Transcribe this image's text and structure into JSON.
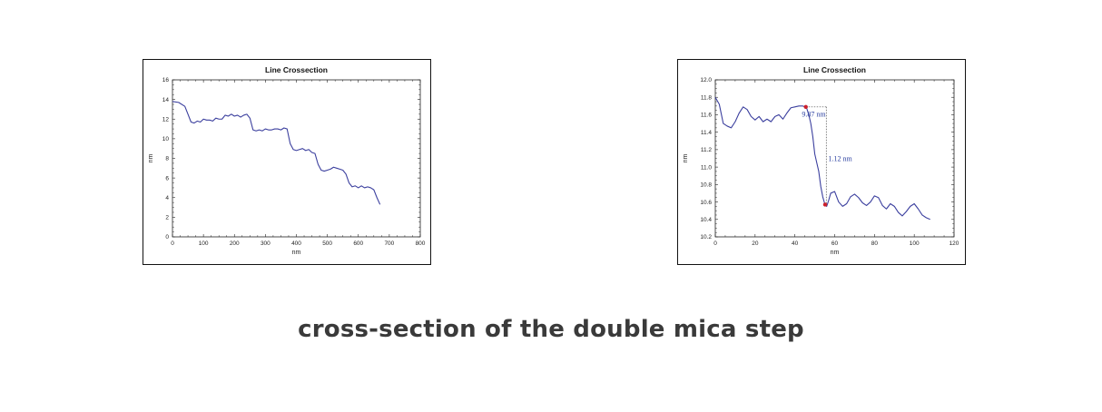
{
  "caption": "cross-section of the double mica step",
  "chart_data": [
    {
      "type": "line",
      "title": "Line Crossection",
      "xlabel": "nm",
      "ylabel": "nm",
      "xlim": [
        0,
        800
      ],
      "ylim": [
        0,
        16
      ],
      "xticks": [
        0,
        100,
        200,
        300,
        400,
        500,
        600,
        700,
        800
      ],
      "yticks": [
        0,
        2,
        4,
        6,
        8,
        10,
        12,
        14,
        16
      ],
      "grid": false,
      "line_color": "#3b3f9e",
      "series": [
        {
          "x": [
            0,
            20,
            40,
            50,
            60,
            70,
            80,
            90,
            100,
            110,
            120,
            130,
            140,
            150,
            160,
            170,
            180,
            190,
            200,
            210,
            220,
            230,
            240,
            250,
            260,
            270,
            280,
            290,
            300,
            310,
            320,
            330,
            340,
            350,
            360,
            370,
            380,
            390,
            400,
            410,
            420,
            430,
            440,
            450,
            460,
            470,
            480,
            490,
            500,
            510,
            520,
            530,
            540,
            550,
            560,
            570,
            580,
            590,
            600,
            610,
            620,
            630,
            640,
            650,
            660,
            670
          ],
          "y": [
            13.8,
            13.7,
            13.3,
            12.5,
            11.7,
            11.6,
            11.8,
            11.7,
            12.0,
            11.9,
            11.9,
            11.8,
            12.1,
            12.0,
            12.0,
            12.4,
            12.3,
            12.5,
            12.3,
            12.4,
            12.2,
            12.4,
            12.5,
            12.1,
            10.9,
            10.8,
            10.9,
            10.8,
            11.0,
            10.9,
            10.9,
            11.0,
            11.0,
            10.9,
            11.1,
            11.0,
            9.5,
            8.9,
            8.8,
            8.9,
            9.0,
            8.8,
            8.9,
            8.6,
            8.5,
            7.4,
            6.8,
            6.7,
            6.8,
            6.9,
            7.1,
            7.0,
            6.9,
            6.8,
            6.4,
            5.5,
            5.1,
            5.2,
            5.0,
            5.2,
            5.0,
            5.1,
            5.0,
            4.8,
            4.0,
            3.3
          ]
        }
      ]
    },
    {
      "type": "line",
      "title": "Line Crossection",
      "xlabel": "nm",
      "ylabel": "nm",
      "xlim": [
        0,
        120
      ],
      "ylim": [
        10.2,
        12.0
      ],
      "xticks": [
        0,
        20,
        40,
        60,
        80,
        100,
        120
      ],
      "yticks": [
        10.2,
        10.4,
        10.6,
        10.8,
        11.0,
        11.2,
        11.4,
        11.6,
        11.8,
        12.0
      ],
      "grid": false,
      "line_color": "#3b3f9e",
      "series": [
        {
          "x": [
            0,
            2,
            4,
            6,
            8,
            10,
            12,
            14,
            16,
            18,
            20,
            22,
            24,
            26,
            28,
            30,
            32,
            34,
            36,
            38,
            40,
            42,
            44,
            45,
            46,
            47,
            48,
            49,
            50,
            51,
            52,
            53,
            54,
            55,
            56,
            57,
            58,
            60,
            62,
            64,
            66,
            68,
            70,
            72,
            74,
            76,
            78,
            80,
            82,
            84,
            86,
            88,
            90,
            92,
            94,
            96,
            98,
            100,
            102,
            104,
            106,
            108
          ],
          "y": [
            11.8,
            11.72,
            11.5,
            11.47,
            11.45,
            11.52,
            11.62,
            11.69,
            11.66,
            11.58,
            11.54,
            11.58,
            11.52,
            11.55,
            11.52,
            11.58,
            11.6,
            11.55,
            11.62,
            11.68,
            11.69,
            11.7,
            11.7,
            11.69,
            11.67,
            11.6,
            11.5,
            11.35,
            11.15,
            11.05,
            10.95,
            10.78,
            10.66,
            10.58,
            10.55,
            10.62,
            10.7,
            10.72,
            10.6,
            10.55,
            10.58,
            10.66,
            10.69,
            10.65,
            10.59,
            10.56,
            10.6,
            10.67,
            10.65,
            10.56,
            10.52,
            10.58,
            10.55,
            10.48,
            10.44,
            10.49,
            10.55,
            10.58,
            10.52,
            10.45,
            10.42,
            10.4
          ]
        }
      ],
      "annotations": [
        {
          "text": "9.87 nm"
        },
        {
          "text": "1.12 nm"
        }
      ]
    }
  ]
}
